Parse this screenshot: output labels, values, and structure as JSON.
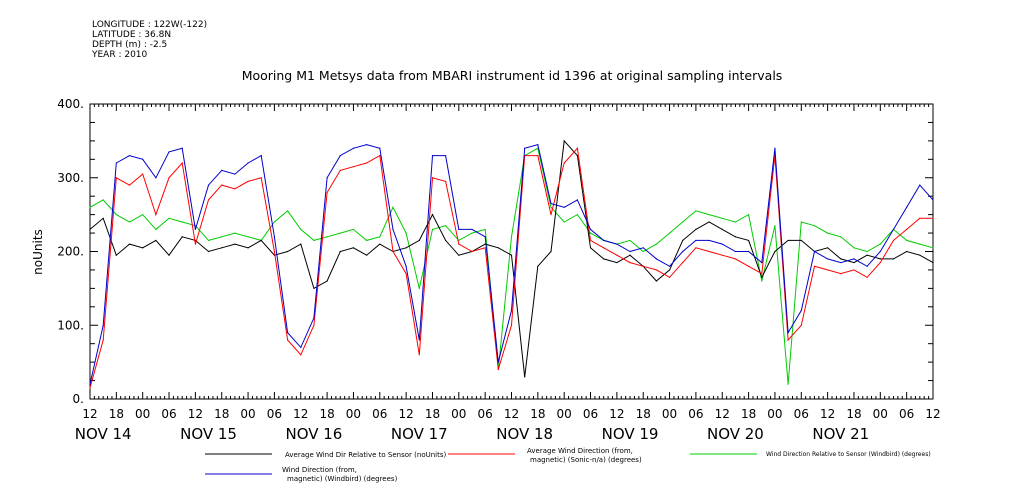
{
  "meta": {
    "longitude": "LONGITUDE : 122W(-122)",
    "latitude": "LATITUDE : 36.8N",
    "depth": "DEPTH (m) : -2.5",
    "year": "YEAR : 2010"
  },
  "chart_data": {
    "type": "line",
    "title": "Mooring M1 Metsys data from MBARI instrument id 1396 at original sampling intervals",
    "ylabel": "noUnits",
    "xlabel": "",
    "ylim": [
      0,
      400
    ],
    "yticks": [
      "0.",
      "100.",
      "200.",
      "300.",
      "400."
    ],
    "xlim_hours": [
      0,
      192
    ],
    "hour_ticks": [
      "12",
      "18",
      "00",
      "06",
      "12",
      "18",
      "00",
      "06",
      "12",
      "18",
      "00",
      "06",
      "12",
      "18",
      "00",
      "06",
      "12",
      "18",
      "00",
      "06",
      "12",
      "18",
      "00",
      "06",
      "12",
      "18",
      "00",
      "06",
      "12",
      "18",
      "00",
      "06",
      "12"
    ],
    "date_labels": [
      "NOV 14",
      "NOV 15",
      "NOV 16",
      "NOV 17",
      "NOV 18",
      "NOV 19",
      "NOV 20",
      "NOV 21"
    ],
    "grid": false,
    "legend": "bottom",
    "series": [
      {
        "name": "Average Wind Dir Relative to Sensor (noUnits)",
        "color": "#000000",
        "x": [
          0,
          3,
          6,
          9,
          12,
          15,
          18,
          21,
          24,
          27,
          30,
          33,
          36,
          39,
          42,
          45,
          48,
          51,
          54,
          57,
          60,
          63,
          66,
          69,
          72,
          75,
          78,
          81,
          84,
          87,
          90,
          93,
          96,
          99,
          102,
          105,
          108,
          111,
          114,
          117,
          120,
          123,
          126,
          129,
          132,
          135,
          138,
          141,
          144,
          147,
          150,
          153,
          156,
          159,
          162,
          165,
          168,
          171,
          174,
          177,
          180,
          183,
          186,
          189,
          192
        ],
        "values": [
          230,
          245,
          195,
          210,
          205,
          215,
          195,
          220,
          215,
          200,
          205,
          210,
          205,
          215,
          195,
          200,
          210,
          150,
          160,
          200,
          205,
          195,
          210,
          200,
          205,
          215,
          250,
          215,
          195,
          200,
          210,
          205,
          195,
          30,
          180,
          200,
          350,
          330,
          205,
          190,
          185,
          195,
          180,
          160,
          175,
          215,
          230,
          240,
          230,
          220,
          215,
          165,
          200,
          215,
          215,
          200,
          205,
          190,
          185,
          195,
          190,
          190,
          200,
          195,
          185
        ]
      },
      {
        "name": "Average Wind Direction (from, magnetic) (Sonic-n/a) (degrees)",
        "color": "#ff0000",
        "x": [
          0,
          3,
          6,
          9,
          12,
          15,
          18,
          21,
          24,
          27,
          30,
          33,
          36,
          39,
          42,
          45,
          48,
          51,
          54,
          57,
          60,
          63,
          66,
          69,
          72,
          75,
          78,
          81,
          84,
          87,
          90,
          93,
          96,
          99,
          102,
          105,
          108,
          111,
          114,
          117,
          120,
          123,
          126,
          129,
          132,
          135,
          138,
          141,
          144,
          147,
          150,
          153,
          156,
          159,
          162,
          165,
          168,
          171,
          174,
          177,
          180,
          183,
          186,
          189,
          192
        ],
        "values": [
          15,
          80,
          300,
          290,
          305,
          250,
          300,
          320,
          210,
          270,
          290,
          285,
          295,
          300,
          200,
          80,
          60,
          100,
          280,
          310,
          315,
          320,
          330,
          200,
          170,
          60,
          300,
          295,
          210,
          200,
          205,
          40,
          100,
          330,
          330,
          250,
          320,
          340,
          215,
          205,
          195,
          185,
          180,
          175,
          165,
          185,
          205,
          200,
          195,
          190,
          180,
          170,
          330,
          80,
          100,
          180,
          175,
          170,
          175,
          165,
          185,
          215,
          230,
          245,
          245
        ]
      },
      {
        "name": "Wind Direction Relative to Sensor (Windbird) (degrees)",
        "color": "#00cc00",
        "x": [
          0,
          3,
          6,
          9,
          12,
          15,
          18,
          21,
          24,
          27,
          30,
          33,
          36,
          39,
          42,
          45,
          48,
          51,
          54,
          57,
          60,
          63,
          66,
          69,
          72,
          75,
          78,
          81,
          84,
          87,
          90,
          93,
          96,
          99,
          102,
          105,
          108,
          111,
          114,
          117,
          120,
          123,
          126,
          129,
          132,
          135,
          138,
          141,
          144,
          147,
          150,
          153,
          156,
          159,
          162,
          165,
          168,
          171,
          174,
          177,
          180,
          183,
          186,
          189,
          192
        ],
        "values": [
          260,
          270,
          250,
          240,
          250,
          230,
          245,
          240,
          235,
          215,
          220,
          225,
          220,
          215,
          240,
          255,
          230,
          215,
          220,
          225,
          230,
          215,
          220,
          260,
          225,
          150,
          230,
          235,
          215,
          225,
          230,
          40,
          220,
          330,
          340,
          260,
          240,
          250,
          225,
          215,
          210,
          215,
          200,
          210,
          225,
          240,
          255,
          250,
          245,
          240,
          250,
          160,
          235,
          20,
          240,
          235,
          225,
          220,
          205,
          200,
          210,
          230,
          215,
          210,
          205
        ]
      },
      {
        "name": "Wind Direction (from, magnetic) (Windbird) (degrees)",
        "color": "#0000cc",
        "x": [
          0,
          3,
          6,
          9,
          12,
          15,
          18,
          21,
          24,
          27,
          30,
          33,
          36,
          39,
          42,
          45,
          48,
          51,
          54,
          57,
          60,
          63,
          66,
          69,
          72,
          75,
          78,
          81,
          84,
          87,
          90,
          93,
          96,
          99,
          102,
          105,
          108,
          111,
          114,
          117,
          120,
          123,
          126,
          129,
          132,
          135,
          138,
          141,
          144,
          147,
          150,
          153,
          156,
          159,
          162,
          165,
          168,
          171,
          174,
          177,
          180,
          183,
          186,
          189,
          192
        ],
        "values": [
          20,
          100,
          320,
          330,
          325,
          300,
          335,
          340,
          230,
          290,
          310,
          305,
          320,
          330,
          220,
          90,
          70,
          110,
          300,
          330,
          340,
          345,
          340,
          230,
          180,
          80,
          330,
          330,
          230,
          230,
          220,
          50,
          120,
          340,
          345,
          265,
          260,
          270,
          230,
          215,
          210,
          200,
          205,
          190,
          180,
          200,
          215,
          215,
          210,
          200,
          200,
          185,
          340,
          90,
          120,
          200,
          190,
          185,
          190,
          180,
          200,
          230,
          260,
          290,
          270
        ]
      }
    ]
  },
  "legend": {
    "item1": "Average Wind Dir Relative to Sensor (noUnits)",
    "item2a": "Average Wind Direction (from,",
    "item2b": "magnetic) (Sonic-n/a) (degrees)",
    "item3": "Wind Direction Relative to Sensor (Windbird) (degrees)",
    "item4a": "Wind Direction (from,",
    "item4b": "magnetic) (Windbird) (degrees)"
  }
}
